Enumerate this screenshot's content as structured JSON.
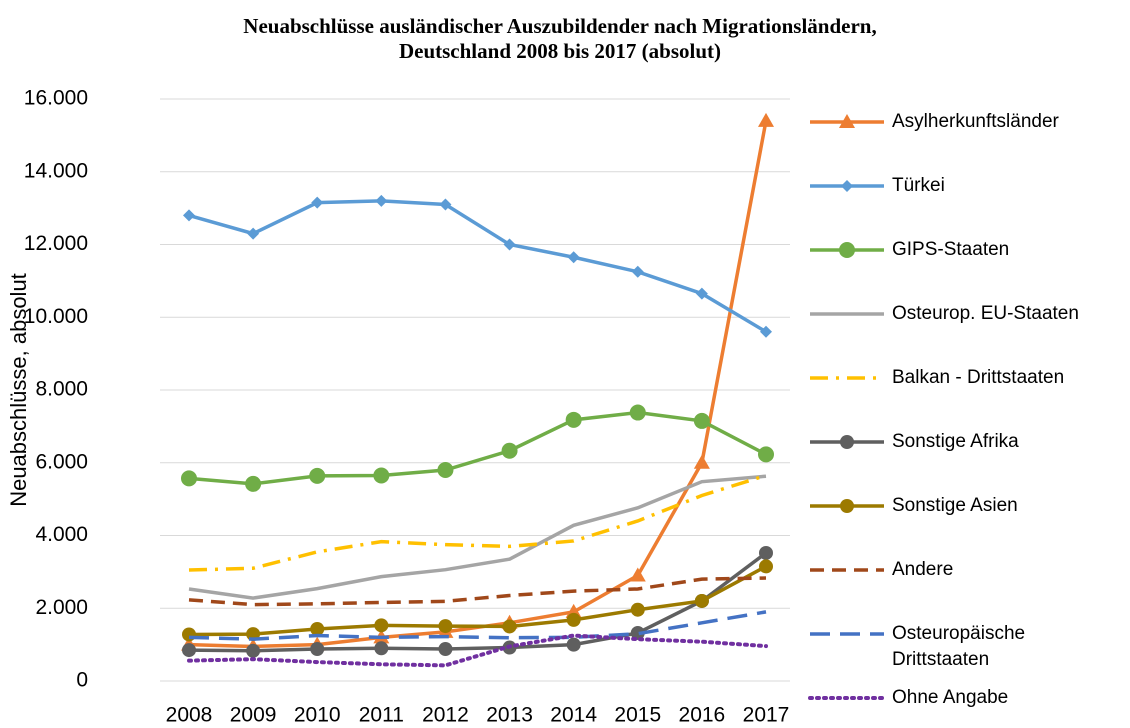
{
  "chart_data": {
    "type": "line",
    "title": [
      "Neuabschlüsse ausländischer Auszubildender nach Migrationsländern,",
      "Deutschland 2008 bis 2017 (absolut)"
    ],
    "ylabel": "Neuabschlüsse, absolut",
    "categories": [
      "2008",
      "2009",
      "2010",
      "2011",
      "2012",
      "2013",
      "2014",
      "2015",
      "2016",
      "2017"
    ],
    "ylim": [
      0,
      16000
    ],
    "yticks": [
      0,
      {
        "value": 2000,
        "label": "2.000"
      },
      {
        "value": 4000,
        "label": "4.000"
      },
      {
        "value": 6000,
        "label": "6.000"
      },
      {
        "value": 8000,
        "label": "8.000"
      },
      {
        "value": 10000,
        "label": "10.000"
      },
      {
        "value": 12000,
        "label": "12.000"
      },
      {
        "value": 14000,
        "label": "14.000"
      },
      {
        "value": 16000,
        "label": "16.000"
      }
    ],
    "grid": true,
    "legend": "right",
    "series": [
      {
        "name": "Asylherkunftsländer",
        "color": "#ed7d31",
        "marker": "triangle",
        "dash": "solid",
        "values": [
          1000,
          950,
          1000,
          1200,
          1350,
          1600,
          1900,
          2900,
          6000,
          15400
        ]
      },
      {
        "name": "Türkei",
        "color": "#5b9bd5",
        "marker": "diamond",
        "dash": "solid",
        "values": [
          12800,
          12300,
          13150,
          13200,
          13100,
          12000,
          11650,
          11250,
          10650,
          9600
        ]
      },
      {
        "name": "GIPS-Staaten",
        "color": "#70ad47",
        "marker": "bigcircle",
        "dash": "solid",
        "values": [
          5570,
          5420,
          5640,
          5650,
          5800,
          6330,
          7180,
          7380,
          7150,
          6230
        ]
      },
      {
        "name": "Osteurop. EU-Staaten",
        "color": "#a5a5a5",
        "marker": "none",
        "dash": "solid",
        "values": [
          2530,
          2280,
          2540,
          2870,
          3060,
          3350,
          4280,
          4760,
          5480,
          5630
        ]
      },
      {
        "name": "Balkan - Drittstaaten",
        "color": "#ffc000",
        "marker": "none",
        "dash": "dashdot",
        "values": [
          3050,
          3100,
          3550,
          3830,
          3750,
          3700,
          3850,
          4400,
          5100,
          5650
        ]
      },
      {
        "name": "Sonstige Afrika",
        "color": "#5f5f5f",
        "marker": "circle",
        "dash": "solid",
        "values": [
          850,
          830,
          880,
          900,
          880,
          920,
          1000,
          1320,
          2200,
          3520
        ]
      },
      {
        "name": "Sonstige Asien",
        "color": "#9c7a00",
        "marker": "circle",
        "dash": "solid",
        "values": [
          1280,
          1290,
          1430,
          1530,
          1510,
          1500,
          1680,
          1960,
          2200,
          3150
        ]
      },
      {
        "name": "Andere",
        "color": "#a0481a",
        "marker": "none",
        "dash": "dash",
        "values": [
          2230,
          2100,
          2120,
          2160,
          2190,
          2350,
          2470,
          2530,
          2800,
          2830
        ]
      },
      {
        "name": " Osteuropäische Drittstaaten",
        "color": "#4472c4",
        "marker": "none",
        "dash": "longdash",
        "values": [
          1200,
          1150,
          1250,
          1200,
          1220,
          1190,
          1200,
          1300,
          1600,
          1900
        ]
      },
      {
        "name": "Ohne Angabe",
        "color": "#7030a0",
        "marker": "none",
        "dash": "dot",
        "values": [
          560,
          600,
          520,
          460,
          430,
          950,
          1250,
          1150,
          1080,
          960
        ]
      }
    ]
  }
}
